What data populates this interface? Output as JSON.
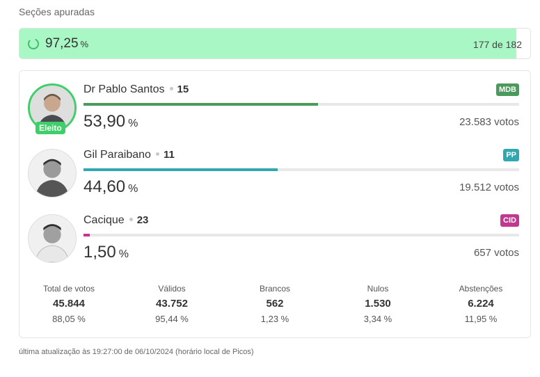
{
  "header": {
    "title": "Seções apuradas"
  },
  "progress": {
    "percent_value": "97,25",
    "percent_unit": "%",
    "fill_fraction": 0.9725,
    "count_text": "177 de 182",
    "spinner_icon": "loading-spinner-icon"
  },
  "candidates": [
    {
      "name": "Dr Pablo Santos",
      "number": "15",
      "party": "MDB",
      "party_color": "#4a9a5c",
      "bar_color": "#4a9a5c",
      "percent_value": "53,90",
      "percent_unit": "%",
      "share": 0.539,
      "votes": "23.583 votos",
      "elected": true,
      "elected_label": "Eleito",
      "photo_icon": "candidate-photo-icon"
    },
    {
      "name": "Gil Paraibano",
      "number": "11",
      "party": "PP",
      "party_color": "#31a8b0",
      "bar_color": "#31a8b0",
      "percent_value": "44,60",
      "percent_unit": "%",
      "share": 0.446,
      "votes": "19.512 votos",
      "elected": false,
      "photo_icon": "candidate-photo-icon"
    },
    {
      "name": "Cacique",
      "number": "23",
      "party": "CID",
      "party_color": "#c2378f",
      "bar_color": "#c2378f",
      "percent_value": "1,50",
      "percent_unit": "%",
      "share": 0.015,
      "votes": "657 votos",
      "elected": false,
      "photo_icon": "candidate-photo-icon"
    }
  ],
  "stats": [
    {
      "label": "Total de votos",
      "value": "45.844",
      "percent": "88,05 %"
    },
    {
      "label": "Válidos",
      "value": "43.752",
      "percent": "95,44 %"
    },
    {
      "label": "Brancos",
      "value": "562",
      "percent": "1,23 %"
    },
    {
      "label": "Nulos",
      "value": "1.530",
      "percent": "3,34 %"
    },
    {
      "label": "Abstenções",
      "value": "6.224",
      "percent": "11,95 %"
    }
  ],
  "footer": {
    "text": "última atualização às 19:27:00 de 06/10/2024 (horário local de Picos)"
  }
}
